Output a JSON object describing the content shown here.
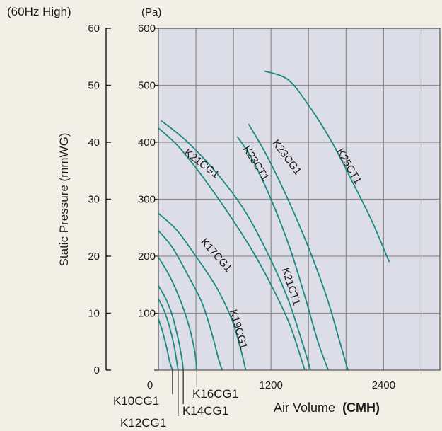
{
  "chart_data": {
    "type": "line",
    "header_left": "(60Hz High)",
    "ylabel": "Static Pressure (mmWG)",
    "ylabel2": "(Pa)",
    "xlabel": "Air Volume",
    "xlabel_unit": "(CMH)",
    "xlim": [
      0,
      3000
    ],
    "ylim": [
      0,
      600
    ],
    "ylim_mmwg": [
      0,
      60
    ],
    "x_ticks": [
      {
        "v": 0,
        "label": "0"
      },
      {
        "v": 1200,
        "label": "1200"
      },
      {
        "v": 2400,
        "label": "2400"
      }
    ],
    "y_ticks_pa": [
      {
        "v": 0,
        "label": ""
      },
      {
        "v": 100,
        "label": "100"
      },
      {
        "v": 200,
        "label": "200"
      },
      {
        "v": 300,
        "label": "300"
      },
      {
        "v": 400,
        "label": "400"
      },
      {
        "v": 500,
        "label": "500"
      },
      {
        "v": 600,
        "label": "600"
      }
    ],
    "y_ticks_mmwg": [
      {
        "v": 0,
        "label": "0"
      },
      {
        "v": 10,
        "label": "10"
      },
      {
        "v": 20,
        "label": "20"
      },
      {
        "v": 30,
        "label": "30"
      },
      {
        "v": 40,
        "label": "40"
      },
      {
        "v": 50,
        "label": "50"
      },
      {
        "v": 60,
        "label": "60"
      }
    ],
    "grid": true,
    "line_color": "#1a8a80",
    "grid_color": "#8e8e8e",
    "plot_bg": "#dcdde6",
    "series": [
      {
        "name": "K10CG1",
        "x": [
          0,
          40,
          80,
          120,
          150
        ],
        "y": [
          90,
          70,
          45,
          15,
          0
        ]
      },
      {
        "name": "K12CG1",
        "x": [
          0,
          60,
          120,
          170,
          200,
          210
        ],
        "y": [
          125,
          105,
          75,
          40,
          10,
          0
        ]
      },
      {
        "name": "K14CG1",
        "x": [
          0,
          80,
          150,
          210,
          250,
          265
        ],
        "y": [
          148,
          125,
          95,
          55,
          20,
          0
        ]
      },
      {
        "name": "K16CG1",
        "x": [
          0,
          120,
          240,
          330,
          390,
          410
        ],
        "y": [
          198,
          165,
          120,
          75,
          30,
          0
        ]
      },
      {
        "name": "K17CG1",
        "x": [
          0,
          150,
          320,
          460,
          560,
          640,
          680
        ],
        "y": [
          245,
          215,
          165,
          120,
          70,
          20,
          0
        ]
      },
      {
        "name": "K19CG1",
        "x": [
          0,
          200,
          420,
          620,
          780,
          880,
          930
        ],
        "y": [
          275,
          245,
          195,
          145,
          90,
          35,
          0
        ]
      },
      {
        "name": "K21CG1",
        "x": [
          0,
          200,
          400,
          600,
          800,
          1000,
          1200,
          1400,
          1560
        ],
        "y": [
          425,
          395,
          355,
          310,
          262,
          210,
          150,
          80,
          0
        ]
      },
      {
        "name": "K21CT1",
        "x": [
          30,
          300,
          600,
          900,
          1150,
          1380,
          1550,
          1620
        ],
        "y": [
          438,
          402,
          350,
          285,
          210,
          125,
          40,
          0
        ]
      },
      {
        "name": "K23CT1",
        "x": [
          840,
          1000,
          1200,
          1400,
          1560,
          1700,
          1810
        ],
        "y": [
          410,
          370,
          300,
          215,
          130,
          50,
          0
        ]
      },
      {
        "name": "K23CG1",
        "x": [
          960,
          1150,
          1380,
          1600,
          1800,
          1950,
          2020
        ],
        "y": [
          432,
          378,
          300,
          215,
          125,
          40,
          0
        ]
      },
      {
        "name": "K25CT1",
        "x": [
          1130,
          1380,
          1600,
          1850,
          2100,
          2280,
          2460
        ],
        "y": [
          525,
          510,
          465,
          400,
          320,
          260,
          190
        ]
      }
    ],
    "annotations": [
      {
        "series": "K21CG1",
        "x": 440,
        "y": 358,
        "angle": 37
      },
      {
        "series": "K23CT1",
        "x": 1010,
        "y": 360,
        "angle": 58
      },
      {
        "series": "K23CG1",
        "x": 1340,
        "y": 370,
        "angle": 53
      },
      {
        "series": "K25CT1",
        "x": 2000,
        "y": 355,
        "angle": 60
      },
      {
        "series": "K17CG1",
        "x": 590,
        "y": 198,
        "angle": 48
      },
      {
        "series": "K21CT1",
        "x": 1380,
        "y": 145,
        "angle": 72
      },
      {
        "series": "K19CG1",
        "x": 820,
        "y": 70,
        "angle": 74
      }
    ],
    "bottom_labels": [
      {
        "series": "K10CG1",
        "x": 150,
        "text_x": 160,
        "text_y": 572
      },
      {
        "series": "K12CG1",
        "x": 210,
        "text_x": 170,
        "text_y": 603
      },
      {
        "series": "K14CG1",
        "x": 265,
        "text_x": 258,
        "text_y": 586
      },
      {
        "series": "K16CG1",
        "x": 410,
        "text_x": 272,
        "text_y": 562
      }
    ]
  }
}
